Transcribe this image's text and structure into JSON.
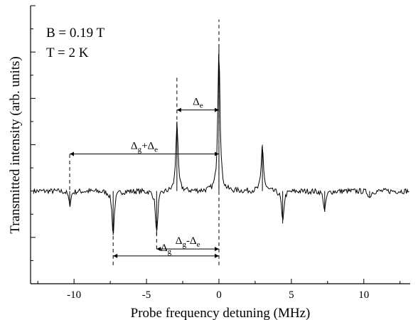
{
  "chart_data": {
    "type": "line",
    "xlabel": "Probe frequency detuning (MHz)",
    "ylabel": "Transmitted intensity (arb. units)",
    "xlim": [
      -13,
      13.2
    ],
    "ylim": [
      -4,
      8
    ],
    "grid": false,
    "x_ticks": [
      -10,
      -5,
      0,
      5,
      10
    ],
    "x_tick_labels": [
      "-10",
      "-5",
      "0",
      "5",
      "10"
    ],
    "y_ticks_labeled": false,
    "conditions": [
      "B = 0.19 T",
      "T = 2 K"
    ],
    "series": [
      {
        "baseline": 0,
        "noise_amplitude": 0.12,
        "peaks": [
          {
            "x": -10.3,
            "y": -0.6
          },
          {
            "x": -7.3,
            "y": -1.9
          },
          {
            "x": -4.3,
            "y": -1.9
          },
          {
            "x": -2.9,
            "y": 3.0
          },
          {
            "x": 0.0,
            "y": 6.3
          },
          {
            "x": 3.0,
            "y": 2.0
          },
          {
            "x": 4.4,
            "y": -1.4
          },
          {
            "x": 7.3,
            "y": -0.9
          },
          {
            "x": 10.4,
            "y": -0.3
          }
        ]
      }
    ],
    "reference_lines": [
      {
        "x": -10.3,
        "y_from": -0.5,
        "y_to": 1.6
      },
      {
        "x": -7.3,
        "y_from": -3.2,
        "y_to": -1.3
      },
      {
        "x": -4.3,
        "y_from": -2.5,
        "y_to": -1.3
      },
      {
        "x": -2.9,
        "y_from": 2.8,
        "y_to": 4.9
      },
      {
        "x": 0.0,
        "y_from": -3.2,
        "y_to": 7.4
      }
    ],
    "annotations": [
      {
        "main": "Δ",
        "sub": "e",
        "from": -2.9,
        "to": 0.0,
        "y": 3.5
      },
      {
        "main": "Δ",
        "sub": "g",
        "mid": "+Δ",
        "sub2": "e",
        "from": -10.3,
        "to": 0.0,
        "y": 1.6
      },
      {
        "main": "Δ",
        "sub": "g",
        "mid": "-Δ",
        "sub2": "e",
        "from": -4.3,
        "to": 0.0,
        "y": -2.5
      },
      {
        "main": "Δ",
        "sub": "g",
        "from": -7.3,
        "to": 0.0,
        "y": -2.8
      }
    ]
  }
}
